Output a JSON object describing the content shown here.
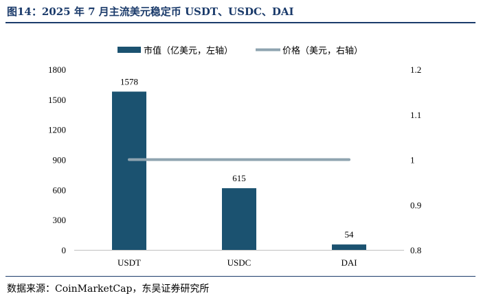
{
  "figure_title": "图14：2025 年 7 月主流美元稳定币 USDT、USDC、DAI",
  "source": "数据来源：CoinMarketCap，东吴证券研究所",
  "colors": {
    "bar": "#1b5270",
    "line": "#8fa4b0",
    "title": "#1a3a6a"
  },
  "chart_data": {
    "type": "bar",
    "categories": [
      "USDT",
      "USDC",
      "DAI"
    ],
    "series": [
      {
        "name": "市值（亿美元，左轴）",
        "type": "bar",
        "axis": "left",
        "values": [
          1578,
          615,
          54
        ]
      },
      {
        "name": "价格（美元，右轴）",
        "type": "line",
        "axis": "right",
        "values": [
          1,
          1,
          1
        ]
      }
    ],
    "y_left": {
      "ylim": [
        0,
        1800
      ],
      "ticks": [
        0,
        300,
        600,
        900,
        1200,
        1500,
        1800
      ]
    },
    "y_right": {
      "ylim": [
        0.8,
        1.2
      ],
      "ticks": [
        0.8,
        0.9,
        1,
        1.1,
        1.2
      ]
    },
    "data_labels": [
      "1578",
      "615",
      "54"
    ],
    "legend_position": "top",
    "grid": false
  }
}
